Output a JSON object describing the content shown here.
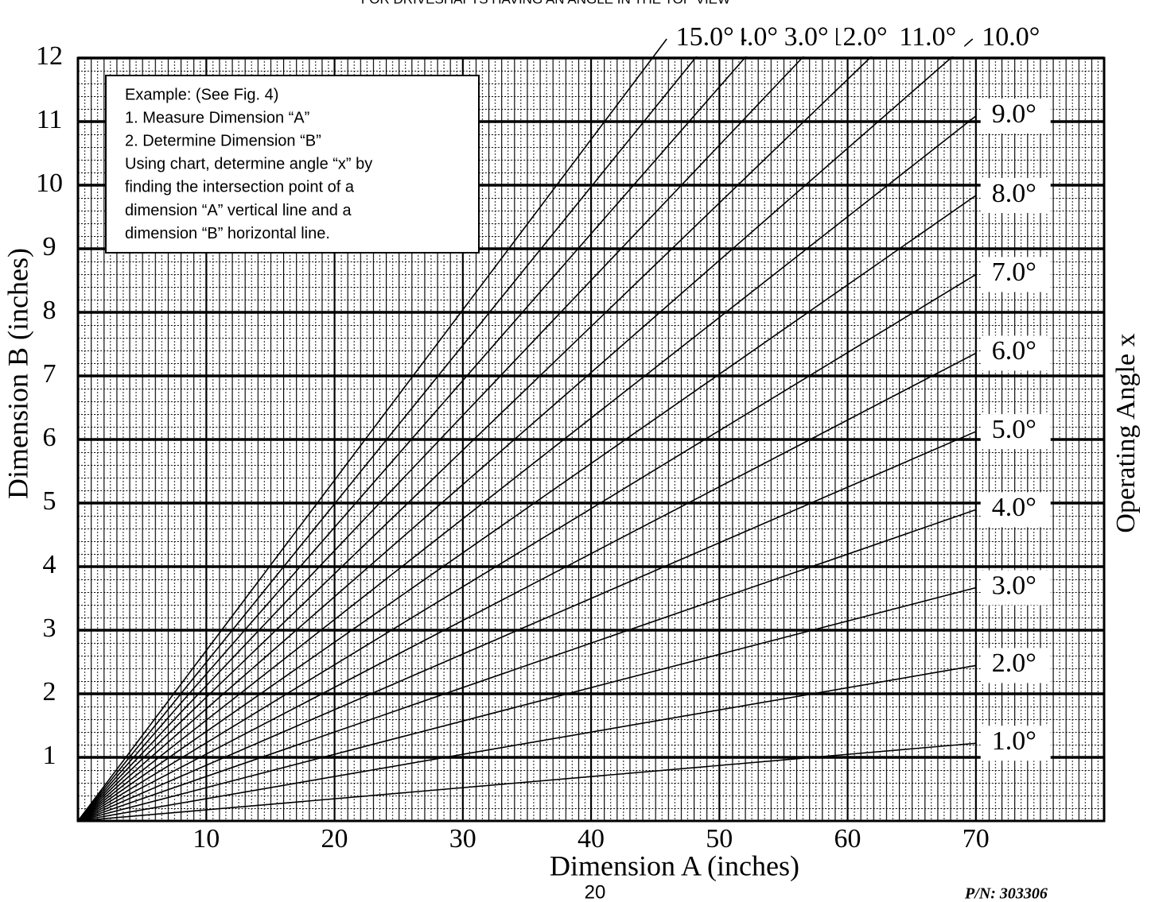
{
  "chart_data": {
    "type": "line",
    "title": "FOR DRIVESHAFTS HAVING AN ANGLE IN THE TOP VIEW",
    "xlabel": "Dimension A (inches)",
    "ylabel": "Dimension B (inches)",
    "right_label": "Operating Angle x",
    "xlim": [
      0,
      80
    ],
    "ylim": [
      0,
      12
    ],
    "xticks": [
      10,
      20,
      30,
      40,
      50,
      60,
      70
    ],
    "yticks": [
      1,
      2,
      3,
      4,
      5,
      6,
      7,
      8,
      9,
      10,
      11,
      12
    ],
    "grid": true,
    "color": "#000000",
    "angles": [
      1,
      2,
      3,
      4,
      5,
      6,
      7,
      8,
      9,
      10,
      11,
      12,
      13,
      14,
      15
    ],
    "angle_labels": [
      "1.0°",
      "2.0°",
      "3.0°",
      "4.0°",
      "5.0°",
      "6.0°",
      "7.0°",
      "8.0°",
      "9.0°",
      "10.0°",
      "11.0°",
      "12.0°",
      "13.0°",
      "14.0°",
      "15.0°"
    ],
    "note": [
      "Example: (See Fig. 4)",
      "1. Measure Dimension “A”",
      "2. Determine Dimension “B”",
      "Using chart, determine angle “x” by",
      "finding the intersection point of a",
      "dimension “A” vertical line and a",
      "dimension “B” horizontal line."
    ],
    "page_number": "20",
    "part_number": "P/N: 303306"
  }
}
